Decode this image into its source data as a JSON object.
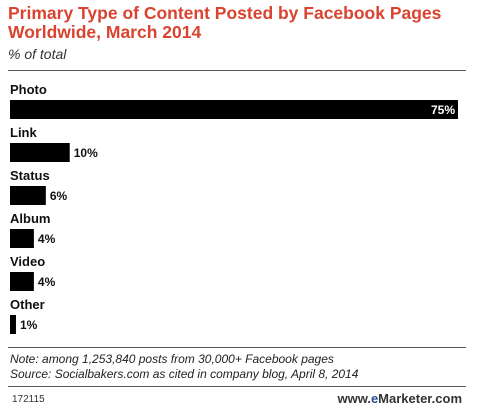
{
  "chart_data": {
    "type": "bar",
    "orientation": "horizontal",
    "title": "Primary Type of Content Posted by Facebook Pages Worldwide, March 2014",
    "subtitle": "% of total",
    "categories": [
      "Photo",
      "Link",
      "Status",
      "Album",
      "Video",
      "Other"
    ],
    "values": [
      75,
      10,
      6,
      4,
      4,
      1
    ],
    "value_labels": [
      "75%",
      "10%",
      "6%",
      "4%",
      "4%",
      "1%"
    ],
    "unit": "%",
    "xlim": [
      0,
      75
    ],
    "grid": false,
    "legend": "none",
    "bar_color": "#000000"
  },
  "notes": {
    "note": "Note: among 1,253,840 posts from 30,000+ Facebook pages",
    "source": "Source: Socialbakers.com as cited in company blog, April 8, 2014"
  },
  "footer": {
    "chart_id": "172115",
    "brand_prefix": "www.",
    "brand_e": "e",
    "brand_rest": "Marketer",
    "brand_suffix": ".com"
  },
  "colors": {
    "title": "#d9432f",
    "bar": "#000000",
    "brand_accent": "#2a4d8f"
  }
}
